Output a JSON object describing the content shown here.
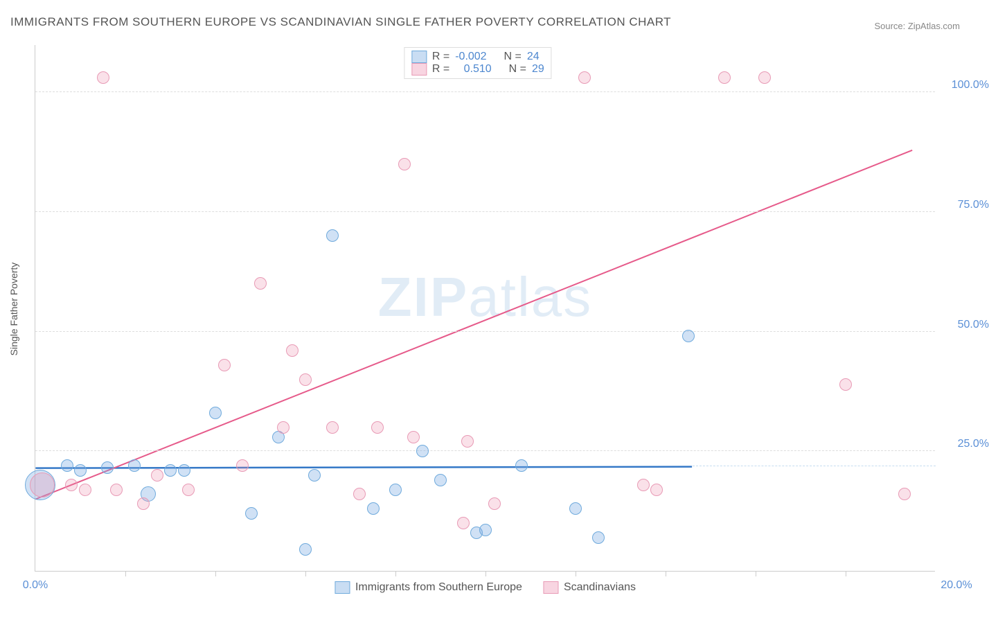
{
  "title": "IMMIGRANTS FROM SOUTHERN EUROPE VS SCANDINAVIAN SINGLE FATHER POVERTY CORRELATION CHART",
  "source_prefix": "Source: ",
  "source_link": "ZipAtlas.com",
  "ylabel": "Single Father Poverty",
  "watermark_a": "ZIP",
  "watermark_b": "atlas",
  "chart": {
    "type": "scatter-correlation",
    "xlim": [
      0,
      20
    ],
    "ylim": [
      0,
      110
    ],
    "xticks": [
      0,
      20
    ],
    "xtick_minor": [
      2,
      4,
      6,
      8,
      10,
      12,
      14,
      16,
      18
    ],
    "yticks": [
      25,
      50,
      75,
      100
    ],
    "ytick_labels": [
      "25.0%",
      "50.0%",
      "75.0%",
      "100.0%"
    ],
    "xtick_labels": [
      "0.0%",
      "20.0%"
    ],
    "background_color": "#ffffff",
    "grid_color": "#dddddd",
    "axis_color": "#cccccc",
    "label_fontsize": 14,
    "tick_fontsize": 16,
    "tick_color": "#5a8fd6",
    "series": [
      {
        "name": "Immigrants from Southern Europe",
        "color_fill": "rgba(121,169,225,0.35)",
        "color_stroke": "#6faadc",
        "marker_radius": 9,
        "R": "-0.002",
        "N": "24",
        "trend": {
          "x1": 0,
          "y1": 21.5,
          "x2": 14.6,
          "y2": 21.8,
          "stroke": "#3478c7",
          "width": 2.5
        },
        "points": [
          {
            "x": 0.1,
            "y": 18,
            "r": 22
          },
          {
            "x": 0.7,
            "y": 22,
            "r": 9
          },
          {
            "x": 1.0,
            "y": 21,
            "r": 9
          },
          {
            "x": 1.6,
            "y": 21.5,
            "r": 9
          },
          {
            "x": 2.2,
            "y": 22,
            "r": 9
          },
          {
            "x": 2.5,
            "y": 16,
            "r": 11
          },
          {
            "x": 3.0,
            "y": 21,
            "r": 9
          },
          {
            "x": 3.3,
            "y": 21,
            "r": 9
          },
          {
            "x": 4.0,
            "y": 33,
            "r": 9
          },
          {
            "x": 4.8,
            "y": 12,
            "r": 9
          },
          {
            "x": 5.4,
            "y": 28,
            "r": 9
          },
          {
            "x": 6.0,
            "y": 4.5,
            "r": 9
          },
          {
            "x": 6.2,
            "y": 20,
            "r": 9
          },
          {
            "x": 6.6,
            "y": 70,
            "r": 9
          },
          {
            "x": 7.5,
            "y": 13,
            "r": 9
          },
          {
            "x": 8.0,
            "y": 17,
            "r": 9
          },
          {
            "x": 8.6,
            "y": 25,
            "r": 9
          },
          {
            "x": 9.0,
            "y": 19,
            "r": 9
          },
          {
            "x": 9.8,
            "y": 8,
            "r": 9
          },
          {
            "x": 10.0,
            "y": 8.5,
            "r": 9
          },
          {
            "x": 10.8,
            "y": 22,
            "r": 9
          },
          {
            "x": 12.0,
            "y": 13,
            "r": 9
          },
          {
            "x": 12.5,
            "y": 7,
            "r": 9
          },
          {
            "x": 14.5,
            "y": 49,
            "r": 9
          }
        ]
      },
      {
        "name": "Scandinavians",
        "color_fill": "rgba(235,135,169,0.25)",
        "color_stroke": "#e89ab5",
        "marker_radius": 9,
        "R": "0.510",
        "N": "29",
        "trend": {
          "x1": 0,
          "y1": 15,
          "x2": 19.5,
          "y2": 88,
          "stroke": "#e65a8a",
          "width": 2
        },
        "points": [
          {
            "x": 0.15,
            "y": 18,
            "r": 18
          },
          {
            "x": 0.8,
            "y": 18,
            "r": 9
          },
          {
            "x": 1.1,
            "y": 17,
            "r": 9
          },
          {
            "x": 1.5,
            "y": 103,
            "r": 9
          },
          {
            "x": 1.8,
            "y": 17,
            "r": 9
          },
          {
            "x": 2.4,
            "y": 14,
            "r": 9
          },
          {
            "x": 2.7,
            "y": 20,
            "r": 9
          },
          {
            "x": 3.4,
            "y": 17,
            "r": 9
          },
          {
            "x": 4.2,
            "y": 43,
            "r": 9
          },
          {
            "x": 4.6,
            "y": 22,
            "r": 9
          },
          {
            "x": 5.0,
            "y": 60,
            "r": 9
          },
          {
            "x": 5.5,
            "y": 30,
            "r": 9
          },
          {
            "x": 5.7,
            "y": 46,
            "r": 9
          },
          {
            "x": 6.0,
            "y": 40,
            "r": 9
          },
          {
            "x": 6.6,
            "y": 30,
            "r": 9
          },
          {
            "x": 7.2,
            "y": 16,
            "r": 9
          },
          {
            "x": 7.6,
            "y": 30,
            "r": 9
          },
          {
            "x": 8.2,
            "y": 85,
            "r": 9
          },
          {
            "x": 8.4,
            "y": 28,
            "r": 9
          },
          {
            "x": 9.5,
            "y": 10,
            "r": 9
          },
          {
            "x": 9.6,
            "y": 27,
            "r": 9
          },
          {
            "x": 10.2,
            "y": 14,
            "r": 9
          },
          {
            "x": 12.2,
            "y": 103,
            "r": 9
          },
          {
            "x": 13.5,
            "y": 18,
            "r": 9
          },
          {
            "x": 13.8,
            "y": 17,
            "r": 9
          },
          {
            "x": 15.3,
            "y": 103,
            "r": 9
          },
          {
            "x": 16.2,
            "y": 103,
            "r": 9
          },
          {
            "x": 18.0,
            "y": 39,
            "r": 9
          },
          {
            "x": 19.3,
            "y": 16,
            "r": 9
          }
        ]
      }
    ]
  },
  "legend_top_labels": {
    "R_label": "R =",
    "N_label": "N ="
  }
}
